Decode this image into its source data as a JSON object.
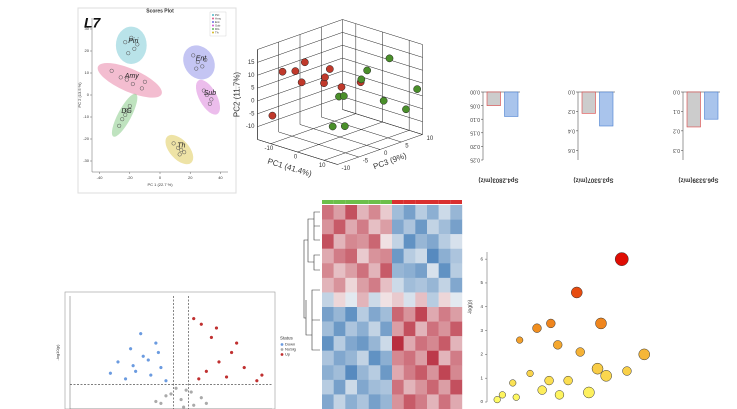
{
  "chart_data": [
    {
      "type": "scatter",
      "title": "Scores Plot",
      "annotation": "L7",
      "xlabel": "PC 1 (22.7 %)",
      "ylabel": "PC 2 (13.5 %)",
      "xlim": [
        -45,
        45
      ],
      "ylim": [
        -35,
        35
      ],
      "xticks": [
        -40,
        -20,
        0,
        20,
        40
      ],
      "yticks": [
        -30,
        -20,
        -10,
        0,
        10,
        20,
        30
      ],
      "ellipses": true,
      "legend": "top-right",
      "series": [
        {
          "name": "Piri",
          "color": "#4fb8c8",
          "x": [
            -23,
            -19,
            -17,
            -21,
            -15
          ],
          "y": [
            24,
            26,
            21,
            19,
            23
          ]
        },
        {
          "name": "Amy",
          "color": "#e05a8a",
          "x": [
            -32,
            -26,
            -22,
            -18,
            -12,
            -10
          ],
          "y": [
            11,
            8,
            7,
            5,
            3,
            6
          ]
        },
        {
          "name": "Ent",
          "color": "#6b6ee0",
          "x": [
            22,
            25,
            28,
            24,
            30
          ],
          "y": [
            18,
            15,
            13,
            12,
            16
          ]
        },
        {
          "name": "Sub",
          "color": "#d05ad0",
          "x": [
            29,
            31,
            34,
            33
          ],
          "y": [
            2,
            0,
            -2,
            -4
          ]
        },
        {
          "name": "DG",
          "color": "#5fb85f",
          "x": [
            -27,
            -25,
            -23,
            -22,
            -20
          ],
          "y": [
            -14,
            -11,
            -9,
            -7,
            -5
          ]
        },
        {
          "name": "Th",
          "color": "#d4b820",
          "x": [
            9,
            12,
            14,
            16,
            13
          ],
          "y": [
            -22,
            -24,
            -25,
            -26,
            -27
          ]
        }
      ]
    },
    {
      "type": "scatter3d",
      "xlabel": "PC1 (41.4%)",
      "ylabel": "PC2 (11.7%)",
      "zlabel": "PC3 (9%)",
      "xlim": [
        -15,
        15
      ],
      "ylim": [
        -15,
        20
      ],
      "zlim": [
        -10,
        10
      ],
      "xticks": [
        -10,
        0,
        10
      ],
      "yticks": [
        -10,
        -5,
        0,
        5,
        10,
        15
      ],
      "zticks": [
        -10,
        -5,
        0,
        5,
        10
      ],
      "series": [
        {
          "color": "#c0392b",
          "x": [
            -12,
            -10,
            -8,
            -6,
            -12,
            -9,
            -4,
            -7,
            -11,
            -5
          ],
          "y": [
            10,
            12,
            6,
            4,
            2,
            -2,
            14,
            8,
            -5,
            0
          ],
          "z": [
            -6,
            -2,
            -4,
            0,
            4,
            6,
            -8,
            2,
            -9,
            8
          ]
        },
        {
          "color": "#4a8f2a",
          "x": [
            6,
            8,
            10,
            12,
            9,
            11,
            5,
            13,
            7,
            10
          ],
          "y": [
            5,
            10,
            0,
            -5,
            15,
            8,
            -8,
            2,
            12,
            -3
          ],
          "z": [
            -4,
            0,
            4,
            8,
            6,
            -6,
            -2,
            10,
            2,
            -8
          ]
        }
      ]
    },
    {
      "type": "bar",
      "rotated": true,
      "xlabel": "Sp4.2803(m/z)",
      "values": [
        0.09,
        0.05
      ],
      "colors": [
        "#a9c4ec",
        "#cccccc"
      ],
      "ylim": [
        0,
        0.25
      ],
      "yticks": [
        {
          "value": 0,
          "label": "0.00"
        },
        {
          "value": 0.05,
          "label": "0.05"
        },
        {
          "value": 0.1,
          "label": "0.10"
        },
        {
          "value": 0.15,
          "label": "0.15"
        },
        {
          "value": 0.2,
          "label": "0.20"
        },
        {
          "value": 0.25,
          "label": "0.25"
        }
      ]
    },
    {
      "type": "bar",
      "rotated": true,
      "xlabel": "Sp3.5307(m/z)",
      "values": [
        0.35,
        0.22
      ],
      "colors": [
        "#a9c4ec",
        "#cccccc"
      ],
      "ylim": [
        0,
        0.7
      ],
      "yticks": [
        {
          "value": 0,
          "label": "0.0"
        },
        {
          "value": 0.2,
          "label": "0.2"
        },
        {
          "value": 0.4,
          "label": "0.4"
        },
        {
          "value": 0.6,
          "label": "0.6"
        }
      ]
    },
    {
      "type": "bar",
      "rotated": true,
      "xlabel": "Sp6.5339(m/z)",
      "values": [
        0.14,
        0.18
      ],
      "colors": [
        "#a9c4ec",
        "#cccccc"
      ],
      "ylim": [
        0,
        0.35
      ],
      "yticks": [
        {
          "value": 0,
          "label": "0.0"
        },
        {
          "value": 0.1,
          "label": "0.1"
        },
        {
          "value": 0.2,
          "label": "0.2"
        },
        {
          "value": 0.3,
          "label": "0.3"
        }
      ]
    },
    {
      "type": "heatmap",
      "colormap": [
        "#2166ac",
        "#f7f7f7",
        "#b2182b"
      ],
      "vlim": [
        -2,
        2
      ],
      "column_colors": [
        "#6cbf4a",
        "#6cbf4a",
        "#6cbf4a",
        "#6cbf4a",
        "#6cbf4a",
        "#6cbf4a",
        "#d93030",
        "#d93030",
        "#d93030",
        "#d93030",
        "#d93030",
        "#d93030"
      ],
      "values": [
        [
          1.2,
          0.8,
          1.5,
          0.6,
          1.0,
          0.4,
          -0.8,
          -1.2,
          -0.6,
          -1.0,
          -0.4,
          -0.9
        ],
        [
          0.9,
          1.4,
          0.7,
          1.1,
          0.5,
          0.8,
          -1.1,
          -0.7,
          -1.3,
          -0.5,
          -0.8,
          -1.2
        ],
        [
          1.5,
          0.6,
          1.0,
          0.9,
          1.3,
          0.2,
          -0.5,
          -1.4,
          -0.9,
          -1.1,
          -0.6,
          -0.3
        ],
        [
          0.7,
          1.1,
          1.3,
          0.4,
          0.9,
          1.0,
          -1.3,
          -0.6,
          -0.4,
          -1.5,
          -1.0,
          -0.7
        ],
        [
          1.0,
          0.5,
          0.8,
          1.2,
          0.6,
          1.4,
          -0.9,
          -1.0,
          -1.2,
          -0.3,
          -1.4,
          -0.6
        ],
        [
          0.6,
          0.9,
          0.3,
          0.8,
          1.1,
          0.5,
          -0.4,
          -0.8,
          -0.7,
          -0.9,
          -0.5,
          -1.1
        ],
        [
          -0.5,
          0.3,
          -0.2,
          0.6,
          -0.4,
          0.2,
          0.4,
          -0.3,
          0.5,
          -0.6,
          0.3,
          -0.2
        ],
        [
          -1.2,
          -0.9,
          -1.4,
          -0.6,
          -1.1,
          -0.8,
          1.3,
          0.9,
          1.6,
          0.7,
          1.1,
          0.8
        ],
        [
          -0.8,
          -1.3,
          -0.7,
          -1.0,
          -0.5,
          -1.2,
          0.8,
          1.5,
          0.6,
          1.2,
          0.9,
          1.4
        ],
        [
          -1.4,
          -0.6,
          -1.1,
          -1.3,
          -0.9,
          -0.4,
          1.8,
          0.7,
          1.2,
          1.0,
          1.4,
          0.6
        ],
        [
          -0.7,
          -1.1,
          -0.9,
          -0.5,
          -1.4,
          -1.0,
          1.0,
          1.2,
          0.8,
          1.7,
          0.6,
          1.1
        ],
        [
          -1.0,
          -0.8,
          -1.5,
          -0.9,
          -0.6,
          -1.3,
          0.7,
          1.1,
          1.4,
          0.9,
          1.6,
          1.0
        ],
        [
          -0.6,
          -1.2,
          -0.4,
          -1.1,
          -0.8,
          -0.7,
          1.2,
          0.6,
          0.9,
          1.3,
          0.8,
          1.5
        ],
        [
          -1.1,
          -0.5,
          -1.0,
          -0.7,
          -1.2,
          -0.9,
          0.9,
          1.4,
          1.1,
          0.6,
          1.2,
          0.7
        ]
      ]
    },
    {
      "type": "scatter",
      "ylabel": "-log10(p)",
      "legend_title": "Status",
      "legend": "right",
      "xlim": [
        -4.4,
        3.6
      ],
      "ylim": [
        0,
        6
      ],
      "hlines": [
        1.3
      ],
      "vlines": [
        -0.3,
        0.3
      ],
      "series": [
        {
          "name": "Down",
          "color": "#6b9be0",
          "x": [
            -2.5,
            -2,
            -1.8,
            -1.5,
            -1.2,
            -1,
            -0.8,
            -2.2,
            -1.6,
            -0.6,
            -1.3,
            -2.8,
            -0.9,
            -1.9
          ],
          "y": [
            2.5,
            3.2,
            2.0,
            2.8,
            1.8,
            3.5,
            2.2,
            1.6,
            4.0,
            1.5,
            2.6,
            1.9,
            3.0,
            2.3
          ]
        },
        {
          "name": "NoSig",
          "color": "#aaaaaa",
          "x": [
            -0.8,
            -0.4,
            0,
            0.2,
            0.5,
            -0.2,
            0.8,
            -1.0,
            0.4,
            0.1,
            -0.6,
            1.0
          ],
          "y": [
            0.3,
            0.8,
            0.5,
            1.0,
            0.2,
            1.1,
            0.6,
            0.4,
            0.9,
            0.1,
            0.7,
            0.3
          ]
        },
        {
          "name": "Up",
          "color": "#c03030",
          "x": [
            0.5,
            0.8,
            1.2,
            1.5,
            1.0,
            2.0,
            2.5,
            1.8,
            0.7,
            3.0,
            1.4,
            2.2,
            3.2
          ],
          "y": [
            4.8,
            4.5,
            3.8,
            2.5,
            2.0,
            3.0,
            2.2,
            1.7,
            1.6,
            1.5,
            4.3,
            3.5,
            1.8
          ]
        }
      ]
    },
    {
      "type": "bubble",
      "ylabel": "-log(p)",
      "xlim": [
        0,
        10
      ],
      "ylim": [
        0,
        6.3
      ],
      "yticks": [
        0,
        1,
        2,
        3,
        4,
        5,
        6
      ],
      "colormap": [
        "#ffff66",
        "#f08c1e",
        "#dd0000"
      ],
      "x": [
        7.5,
        4.9,
        6.3,
        3.4,
        2.6,
        3.8,
        1.6,
        5.1,
        8.8,
        6.1,
        7.8,
        6.6,
        3.3,
        2.2,
        4.4,
        1.2,
        2.9,
        0.6,
        1.4,
        3.9,
        5.6,
        0.3
      ],
      "y": [
        6.0,
        4.6,
        3.3,
        3.3,
        3.1,
        2.4,
        2.6,
        2.1,
        2.0,
        1.4,
        1.3,
        1.1,
        0.9,
        1.2,
        0.9,
        0.8,
        0.5,
        0.3,
        0.2,
        0.3,
        0.4,
        0.1
      ],
      "sizes": [
        6,
        5,
        5,
        4,
        4,
        4,
        3,
        4,
        5,
        5,
        4,
        5,
        4,
        3,
        4,
        3,
        4,
        3,
        3,
        4,
        5,
        3
      ]
    }
  ]
}
